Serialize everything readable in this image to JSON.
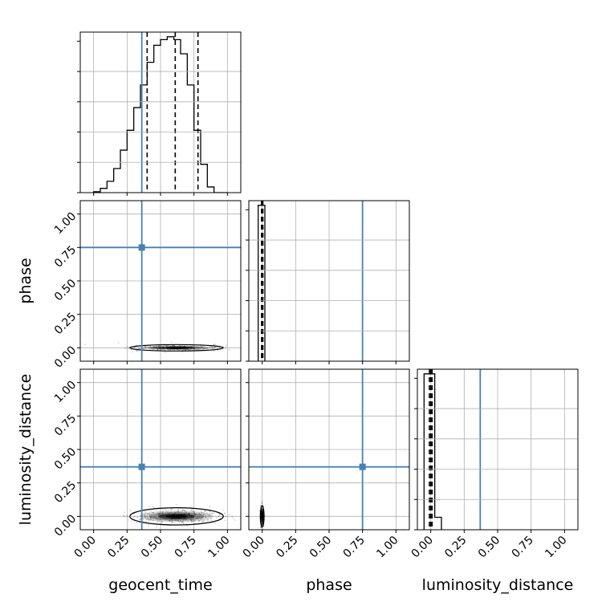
{
  "chart_data": {
    "type": "corner",
    "params": [
      "geocent_time",
      "phase",
      "luminosity_distance"
    ],
    "xlabels": [
      "geocent_time",
      "phase",
      "luminosity_distance"
    ],
    "ylabels": [
      "",
      "phase",
      "luminosity_distance"
    ],
    "tick_values": [
      0.0,
      0.25,
      0.5,
      0.75,
      1.0
    ],
    "tick_labels": [
      "0.00",
      "0.25",
      "0.50",
      "0.75",
      "1.00"
    ],
    "axis_range": [
      -0.1,
      1.1
    ],
    "grid": true,
    "truths": {
      "geocent_time": 0.36,
      "phase": 0.75,
      "luminosity_distance": 0.37
    },
    "truth_color": "#4682b4",
    "hist_color": "#000000",
    "histograms": [
      {
        "param": "geocent_time",
        "bin_edges": [
          0.0,
          0.05,
          0.1,
          0.15,
          0.2,
          0.25,
          0.3,
          0.35,
          0.4,
          0.45,
          0.5,
          0.55,
          0.6,
          0.65,
          0.7,
          0.75,
          0.8,
          0.85,
          0.9,
          0.95,
          1.0
        ],
        "counts": [
          0.3,
          1.5,
          4.0,
          8.5,
          15.0,
          22.0,
          30.0,
          38.0,
          46.0,
          52.0,
          54.0,
          55.0,
          54.0,
          49.0,
          38.0,
          22.0,
          10.0,
          2.0,
          0.0,
          0.0
        ],
        "quantiles": [
          0.4,
          0.61,
          0.78
        ]
      },
      {
        "param": "phase",
        "bin_edges": [
          -0.03,
          0.0,
          0.02
        ],
        "counts": [
          1.0,
          1.0
        ],
        "quantiles": [
          -0.005,
          0.0,
          0.005
        ]
      },
      {
        "param": "luminosity_distance",
        "bin_edges": [
          -0.05,
          0.03,
          0.08
        ],
        "counts": [
          1.0,
          0.08
        ],
        "quantiles": [
          -0.01,
          0.0,
          0.01
        ]
      }
    ],
    "density_panels": [
      {
        "x": "geocent_time",
        "y": "phase",
        "center": [
          0.62,
          0.0
        ],
        "spread": [
          0.5,
          0.015
        ]
      },
      {
        "x": "geocent_time",
        "y": "luminosity_distance",
        "center": [
          0.62,
          0.0
        ],
        "spread": [
          0.5,
          0.04
        ]
      },
      {
        "x": "phase",
        "y": "luminosity_distance",
        "center": [
          0.0,
          0.0
        ],
        "spread": [
          0.02,
          0.05
        ]
      }
    ]
  }
}
